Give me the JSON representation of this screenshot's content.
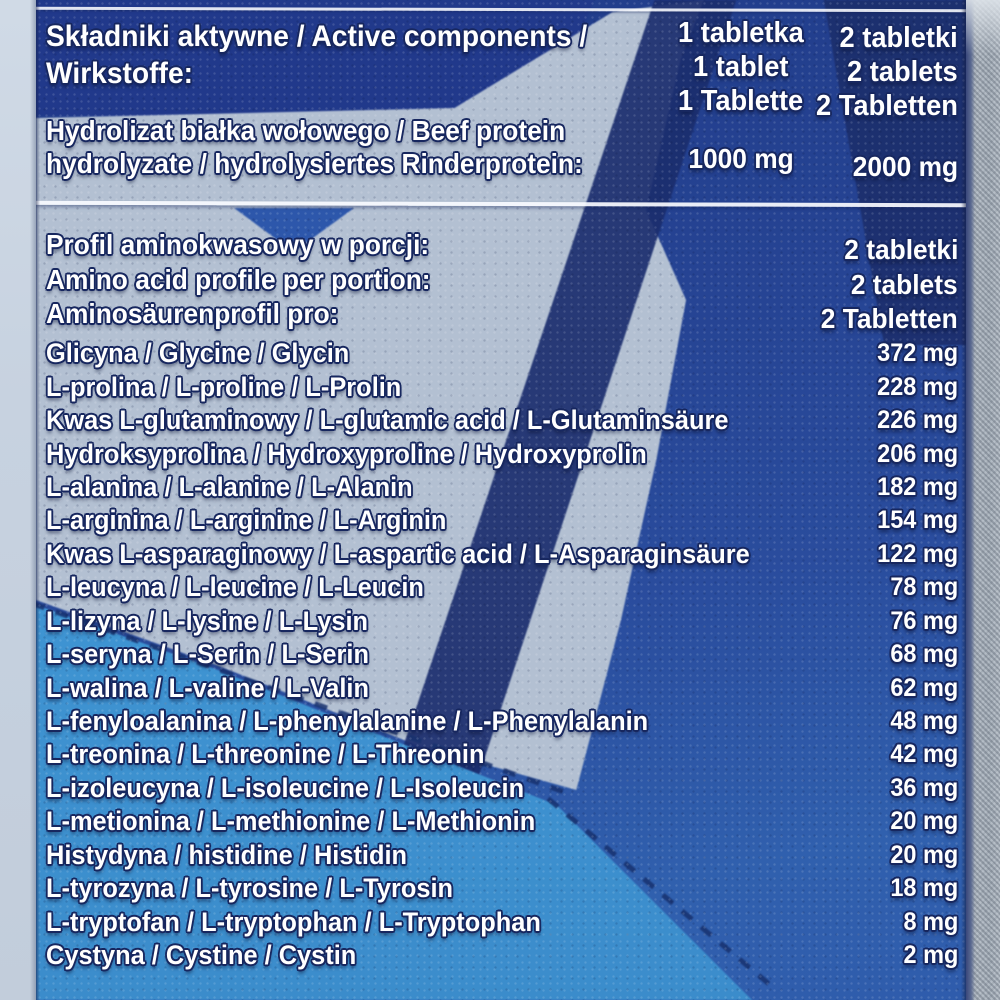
{
  "colors": {
    "label_base_blue": "#264494",
    "navy_band": "#1b2e6e",
    "light_gray_shape": "#b3c0d2",
    "cyan_shape": "#3f95d3",
    "mid_blue": "#3060ae",
    "text_fill": "#ffffff",
    "text_outline": "#17275f",
    "divider_line": "#f8fbff",
    "photo_bg_left": "#c9d4e1",
    "bottle_edge": "#5a6990",
    "bottle_weave_gray": "#a9b1bb"
  },
  "header": {
    "title_lines": [
      "Składniki aktywne / Active components /",
      "Wirkstoffe:"
    ],
    "col1_lines": [
      "1 tabletka",
      "1 tablet",
      "1 Tablette"
    ],
    "col2_lines": [
      "2 tabletki",
      "2 tablets",
      "2 Tabletten"
    ]
  },
  "beef": {
    "label_lines": [
      "Hydrolizat białka wołowego / Beef protein",
      "hydrolyzate / hydrolysiertes Rinderprotein:"
    ],
    "per_1_tablet": "1000 mg",
    "per_2_tablets": "2000 mg"
  },
  "amino": {
    "title_lines": [
      "Profil aminokwasowy w porcji:",
      "Amino acid profile per portion:",
      "Aminosäurenprofil pro:"
    ],
    "serving_lines": [
      "2 tabletki",
      "2 tablets",
      "2 Tabletten"
    ],
    "rows": [
      {
        "label": "Glicyna / Glycine / Glycin",
        "value": "372 mg"
      },
      {
        "label": "L-prolina / L-proline / L-Prolin",
        "value": "228 mg"
      },
      {
        "label": "Kwas L-glutaminowy / L-glutamic acid / L-Glutaminsäure",
        "value": "226 mg"
      },
      {
        "label": "Hydroksyprolina / Hydroxyproline / Hydroxyprolin",
        "value": "206 mg"
      },
      {
        "label": "L-alanina / L-alanine / L-Alanin",
        "value": "182 mg"
      },
      {
        "label": "L-arginina / L-arginine / L-Arginin",
        "value": "154 mg"
      },
      {
        "label": "Kwas L-asparaginowy / L-aspartic acid / L-Asparaginsäure",
        "value": "122 mg"
      },
      {
        "label": "L-leucyna / L-leucine / L-Leucin",
        "value": "78 mg"
      },
      {
        "label": "L-lizyna / L-lysine / L-Lysin",
        "value": "76 mg"
      },
      {
        "label": "L-seryna / L-Serin / L-Serin",
        "value": "68 mg"
      },
      {
        "label": "L-walina / L-valine / L-Valin",
        "value": "62 mg"
      },
      {
        "label": "L-fenyloalanina / L-phenylalanine / L-Phenylalanin",
        "value": "48 mg"
      },
      {
        "label": "L-treonina / L-threonine / L-Threonin",
        "value": "42 mg"
      },
      {
        "label": "L-izoleucyna / L-isoleucine / L-Isoleucin",
        "value": "36 mg"
      },
      {
        "label": "L-metionina / L-methionine / L-Methionin",
        "value": "20 mg"
      },
      {
        "label": "Histydyna / histidine / Histidin",
        "value": "20 mg"
      },
      {
        "label": "L-tyrozyna / L-tyrosine / L-Tyrosin",
        "value": "18 mg"
      },
      {
        "label": "L-tryptofan / L-tryptophan / L-Tryptophan",
        "value": "8 mg"
      },
      {
        "label": "Cystyna / Cystine / Cystin",
        "value": "2 mg"
      }
    ]
  }
}
